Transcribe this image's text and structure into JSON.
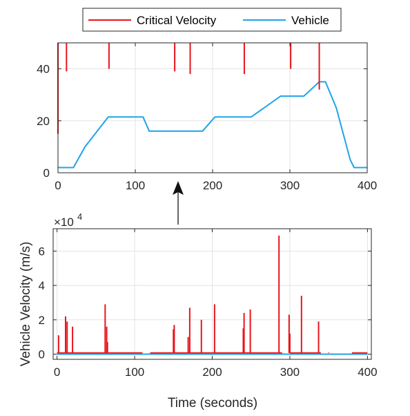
{
  "colors": {
    "critical": "#e8141b",
    "vehicle": "#1fa3e8",
    "grid": "#e3e3e3",
    "axis": "#262626",
    "arrow": "#333333"
  },
  "legend": {
    "entries": [
      "Critical Velocity",
      "Vehicle"
    ]
  },
  "labels": {
    "ylabel": "Vehicle Velocity (m/s)",
    "xlabel": "Time (seconds)",
    "exponent_base": "×10",
    "exponent_power": "4"
  },
  "chart_data": [
    {
      "type": "line",
      "xlim": [
        0,
        400
      ],
      "ylim": [
        0,
        50
      ],
      "xticks": [
        0,
        100,
        200,
        300,
        400
      ],
      "yticks": [
        0,
        20,
        40
      ],
      "grid": true,
      "legend_position": "top-center",
      "series": [
        {
          "name": "Vehicle",
          "x": [
            0,
            20,
            35,
            65,
            110,
            118,
            187,
            203,
            250,
            288,
            318,
            338,
            346,
            360,
            378,
            383,
            400
          ],
          "y": [
            2,
            2,
            10,
            21.5,
            21.5,
            16,
            16,
            21.5,
            21.5,
            29.5,
            29.5,
            35,
            35,
            25,
            5,
            2,
            2
          ]
        },
        {
          "name": "Critical Velocity",
          "spikes": [
            [
              0,
              15,
              50
            ],
            [
              11,
              39,
              50
            ],
            [
              66,
              40,
              50
            ],
            [
              151,
              39,
              50
            ],
            [
              171,
              38,
              50
            ],
            [
              241,
              38,
              50
            ],
            [
              301,
              40,
              50
            ],
            [
              338,
              32,
              50
            ]
          ]
        }
      ]
    },
    {
      "type": "line",
      "xlim": [
        -5,
        405
      ],
      "ylim": [
        -0.3,
        7.3
      ],
      "xticks": [
        0,
        100,
        200,
        300,
        400
      ],
      "yticks": [
        0,
        2,
        4,
        6
      ],
      "y_multiplier": "×10^4",
      "grid": true,
      "series": [
        {
          "name": "Critical Velocity",
          "spikes": [
            [
              2,
              1.1
            ],
            [
              11,
              2.2
            ],
            [
              13,
              1.9
            ],
            [
              20,
              1.6
            ],
            [
              62,
              2.9
            ],
            [
              64,
              1.6
            ],
            [
              65,
              0.7
            ],
            [
              150,
              1.45
            ],
            [
              151,
              1.7
            ],
            [
              169,
              1.0
            ],
            [
              171,
              2.7
            ],
            [
              186,
              2.0
            ],
            [
              203,
              2.9
            ],
            [
              240,
              1.5
            ],
            [
              241,
              2.4
            ],
            [
              249,
              2.6
            ],
            [
              286,
              6.9
            ],
            [
              299,
              2.3
            ],
            [
              300,
              1.2
            ],
            [
              315,
              3.4
            ],
            [
              337,
              1.9
            ],
            [
              350,
              0.1
            ]
          ],
          "baseline_segments": [
            [
              0,
              110,
              0.07
            ],
            [
              120,
              290,
              0.07
            ],
            [
              300,
              340,
              0.07
            ],
            [
              380,
              400,
              0.07
            ]
          ]
        },
        {
          "name": "Vehicle",
          "x": [
            0,
            400
          ],
          "y": [
            0.0,
            0.0
          ]
        }
      ]
    }
  ]
}
